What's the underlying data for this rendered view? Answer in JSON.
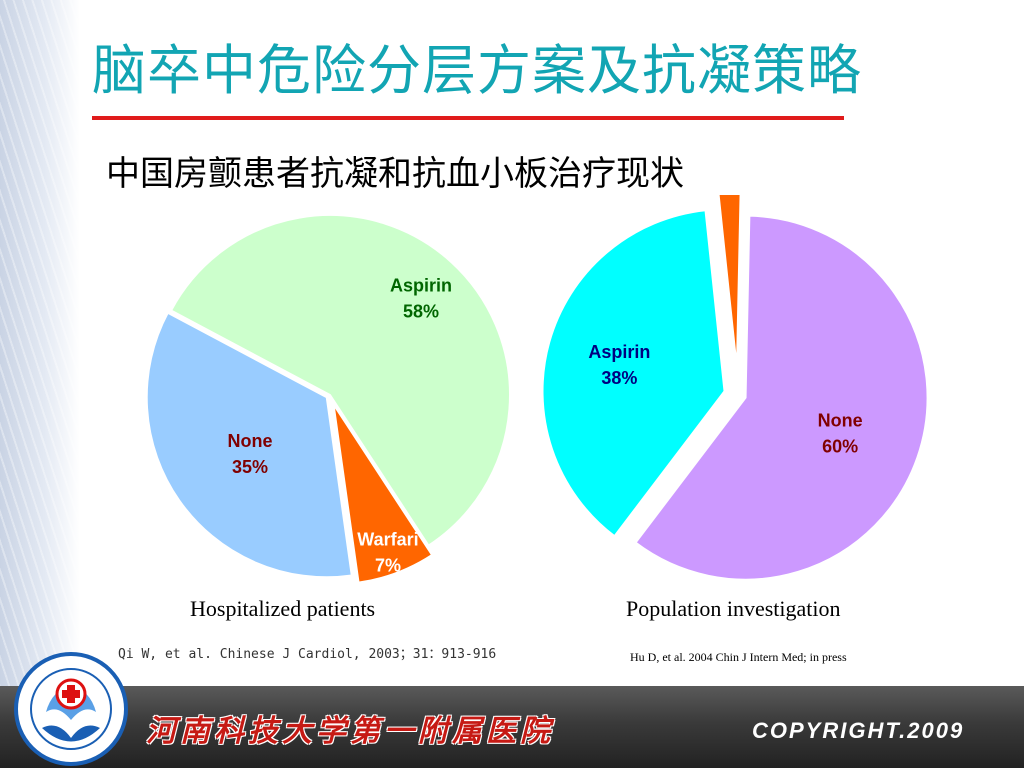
{
  "title": "脑卒中危险分层方案及抗凝策略",
  "subtitle": "中国房颤患者抗凝和抗血小板治疗现状",
  "chart_data": [
    {
      "type": "pie",
      "caption": "Hospitalized patients",
      "reference": "Qi W, et al. Chinese J Cardiol, 2003；31：913-916",
      "slices": [
        {
          "label": "Aspirin",
          "value": 58,
          "value_label": "58%",
          "color": "#ccffcc",
          "text_color": "#006600"
        },
        {
          "label": "Warfari",
          "value": 7,
          "value_label": "7%",
          "color": "#ff6600",
          "text_color": "#ffffff"
        },
        {
          "label": "None",
          "value": 35,
          "value_label": "35%",
          "color": "#99ccff",
          "text_color": "#800000"
        }
      ]
    },
    {
      "type": "pie",
      "caption": "Population investigation",
      "reference": "Hu D, et al. 2004 Chin J Intern Med; in press",
      "slices": [
        {
          "label": "",
          "value": 2,
          "value_label": "",
          "color": "#ff6600",
          "text_color": "#000000"
        },
        {
          "label": "None",
          "value": 60,
          "value_label": "60%",
          "color": "#cc99ff",
          "text_color": "#800000"
        },
        {
          "label": "Aspirin",
          "value": 38,
          "value_label": "38%",
          "color": "#00ffff",
          "text_color": "#000080"
        }
      ]
    }
  ],
  "footer": {
    "institution": "河南科技大学第一附属医院",
    "copyright": "COPYRIGHT.2009"
  },
  "colors": {
    "title": "#12a5b3",
    "rule": "#e01b1b"
  }
}
